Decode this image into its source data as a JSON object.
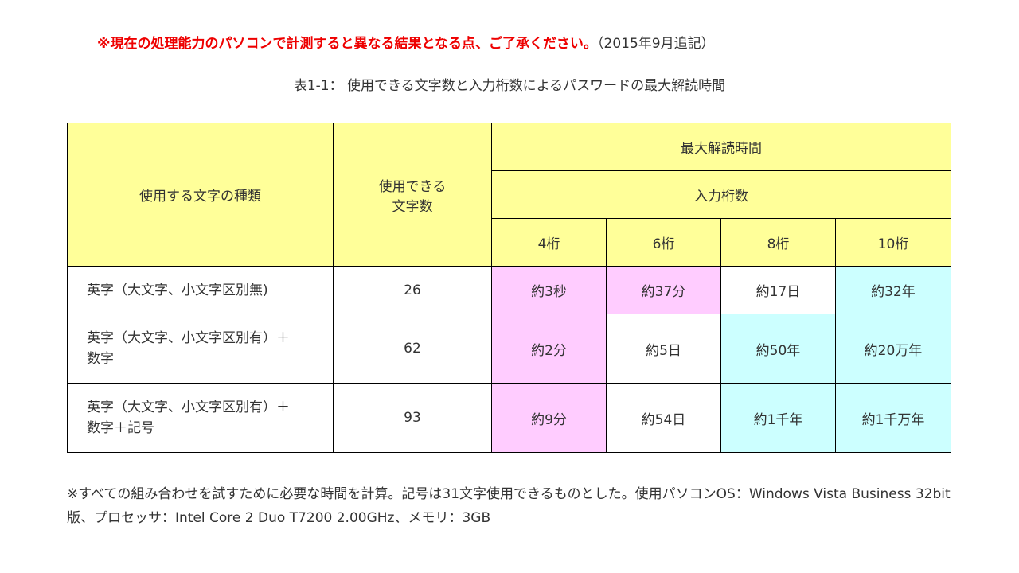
{
  "notice": {
    "red_text": "※現在の処理能力のパソコンで計測すると異なる結果となる点、ご了承ください。",
    "dated_text": "（2015年9月追記）"
  },
  "caption": "表1-1： 使用できる文字数と入力桁数によるパスワードの最大解読時間",
  "table": {
    "headers": {
      "char_type": "使用する文字の種類",
      "char_count_line1": "使用できる",
      "char_count_line2": "文字数",
      "max_time": "最大解読時間",
      "digits": "入力桁数",
      "digit_cols": [
        "4桁",
        "6桁",
        "8桁",
        "10桁"
      ]
    },
    "rows": [
      {
        "type_line1": "英字（大文字、小文字区別無)",
        "type_line2": "",
        "count": "26",
        "times": [
          "約3秒",
          "約37分",
          "約17日",
          "約32年"
        ]
      },
      {
        "type_line1": "英字（大文字、小文字区別有）＋",
        "type_line2": "数字",
        "count": "62",
        "times": [
          "約2分",
          "約5日",
          "約50年",
          "約20万年"
        ]
      },
      {
        "type_line1": "英字（大文字、小文字区別有）＋",
        "type_line2": "数字＋記号",
        "count": "93",
        "times": [
          "約9分",
          "約54日",
          "約1千年",
          "約1千万年"
        ]
      }
    ]
  },
  "footnote": "※すべての組み合わせを試すために必要な時間を計算。記号は31文字使用できるものとした。使用パソコンOS：Windows Vista Business 32bit版、プロセッサ：Intel Core 2 Duo T7200 2.00GHz、メモリ：3GB",
  "colors": {
    "header_bg": "#ffff99",
    "pink_cell": "#ffccff",
    "cyan_cell": "#ccffff",
    "notice_red": "#ee0000"
  }
}
